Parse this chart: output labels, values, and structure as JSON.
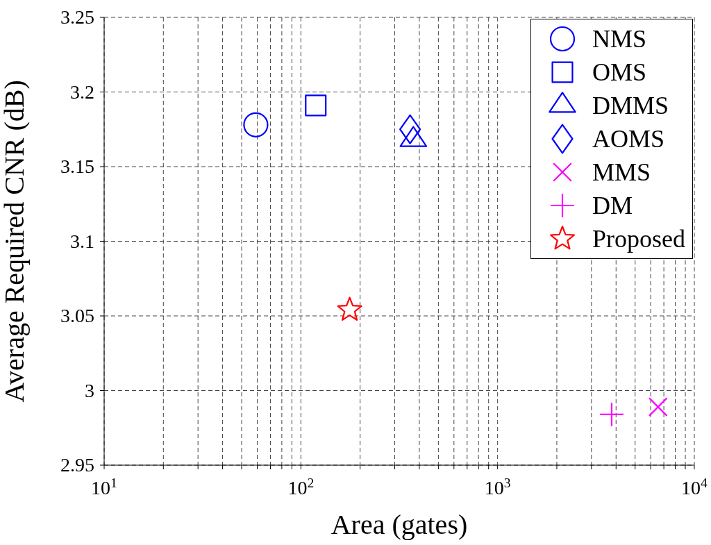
{
  "chart_data": {
    "type": "scatter",
    "xlabel": "Area (gates)",
    "ylabel": "Average Required CNR (dB)",
    "log": "x",
    "xlim": [
      10,
      10000
    ],
    "ylim": [
      2.95,
      3.25
    ],
    "xticks": [
      {
        "value": 10,
        "label": "10$^{1}$"
      },
      {
        "value": 20,
        "label": null
      },
      {
        "value": 30,
        "label": null
      },
      {
        "value": 40,
        "label": null
      },
      {
        "value": 50,
        "label": null
      },
      {
        "value": 60,
        "label": null
      },
      {
        "value": 70,
        "label": null
      },
      {
        "value": 80,
        "label": null
      },
      {
        "value": 90,
        "label": null
      },
      {
        "value": 100,
        "label": "10$^{2}$"
      },
      {
        "value": 200,
        "label": null
      },
      {
        "value": 300,
        "label": null
      },
      {
        "value": 400,
        "label": null
      },
      {
        "value": 500,
        "label": null
      },
      {
        "value": 600,
        "label": null
      },
      {
        "value": 700,
        "label": null
      },
      {
        "value": 800,
        "label": null
      },
      {
        "value": 900,
        "label": null
      },
      {
        "value": 1000,
        "label": "10$^{3}$"
      },
      {
        "value": 2000,
        "label": null
      },
      {
        "value": 3000,
        "label": null
      },
      {
        "value": 4000,
        "label": null
      },
      {
        "value": 5000,
        "label": null
      },
      {
        "value": 6000,
        "label": null
      },
      {
        "value": 7000,
        "label": null
      },
      {
        "value": 8000,
        "label": null
      },
      {
        "value": 9000,
        "label": null
      },
      {
        "value": 10000,
        "label": "10$^{4}$"
      }
    ],
    "yticks": [
      2.95,
      3,
      3.05,
      3.1,
      3.15,
      3.2,
      3.25
    ],
    "grid": true,
    "line_style": "dashed",
    "legend": "top right",
    "series": [
      {
        "name": "NMS",
        "color": "#0000ff",
        "marker": "circle",
        "x": [
          59
        ],
        "values": [
          3.178
        ]
      },
      {
        "name": "OMS",
        "color": "#0000ff",
        "marker": "square",
        "x": [
          119
        ],
        "values": [
          3.191
        ]
      },
      {
        "name": "DMMS",
        "color": "#0000ff",
        "marker": "triangle",
        "x": [
          373
        ],
        "values": [
          3.168
        ]
      },
      {
        "name": "AOMS",
        "color": "#0000ff",
        "marker": "diamond",
        "x": [
          359
        ],
        "values": [
          3.175
        ]
      },
      {
        "name": "MMS",
        "color": "#ff00ff",
        "marker": "cross",
        "x": [
          6540
        ],
        "values": [
          2.989
        ]
      },
      {
        "name": "DM",
        "color": "#ff00ff",
        "marker": "plus",
        "x": [
          3800
        ],
        "values": [
          2.984
        ]
      },
      {
        "name": "Proposed",
        "color": "#ff0000",
        "marker": "star",
        "x": [
          177
        ],
        "values": [
          3.054
        ]
      }
    ]
  }
}
